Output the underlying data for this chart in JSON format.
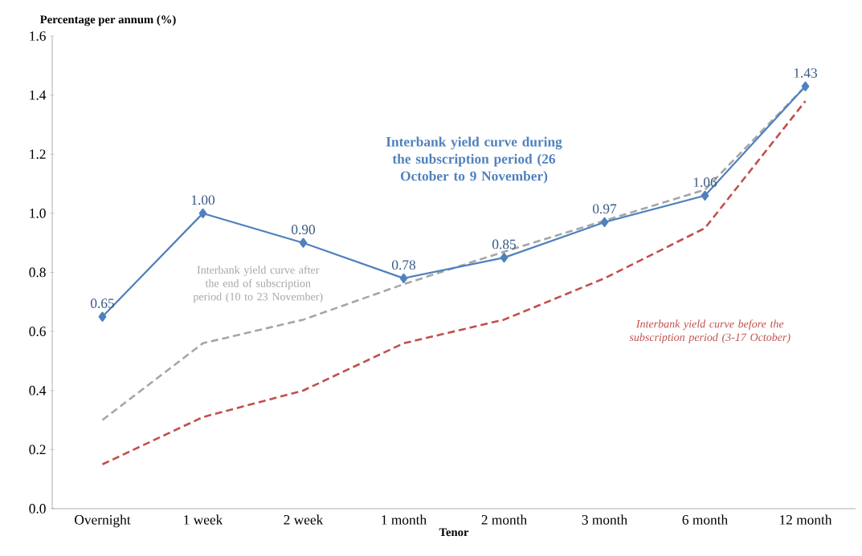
{
  "chart_data": {
    "type": "line",
    "xlabel": "Tenor",
    "ylabel": "Percentage per annum (%)",
    "categories": [
      "Overnight",
      "1 week",
      "2 week",
      "1 month",
      "2 month",
      "3 month",
      "6 month",
      "12 month"
    ],
    "series": [
      {
        "name": "Interbank yield curve after the end of subscription period (10 to 23 November)",
        "color": "#a6a6a6",
        "line_style": "dashed",
        "marker": "none",
        "values": [
          0.3,
          0.56,
          0.64,
          0.76,
          0.87,
          0.975,
          1.08,
          1.43
        ]
      },
      {
        "name": "Interbank yield curve before the subscription period (3-17 October)",
        "color": "#c0504d",
        "line_style": "dashed",
        "marker": "none",
        "values": [
          0.15,
          0.31,
          0.4,
          0.56,
          0.64,
          0.78,
          0.95,
          1.38
        ]
      },
      {
        "name": "Interbank yield curve during the subscription period (26 October to 9 November)",
        "color": "#4f81bd",
        "line_style": "solid",
        "marker": "diamond",
        "values": [
          0.65,
          1.0,
          0.9,
          0.78,
          0.85,
          0.97,
          1.06,
          1.43
        ],
        "value_labels": [
          "0.65",
          "1.00",
          "0.90",
          "0.78",
          "0.85",
          "0.97",
          "1.06",
          "1.43"
        ]
      }
    ],
    "ylim": [
      0,
      1.6
    ],
    "yticks": [
      {
        "value": 0,
        "label": "0.0"
      },
      {
        "value": 0.2,
        "label": "0.2"
      },
      {
        "value": 0.4,
        "label": "0.4"
      },
      {
        "value": 0.6,
        "label": "0.6"
      },
      {
        "value": 0.8,
        "label": "0.8"
      },
      {
        "value": 1.0,
        "label": "1.0"
      },
      {
        "value": 1.2,
        "label": "1.2"
      },
      {
        "value": 1.4,
        "label": "1.4"
      },
      {
        "value": 1.6,
        "label": "1.6"
      }
    ]
  }
}
